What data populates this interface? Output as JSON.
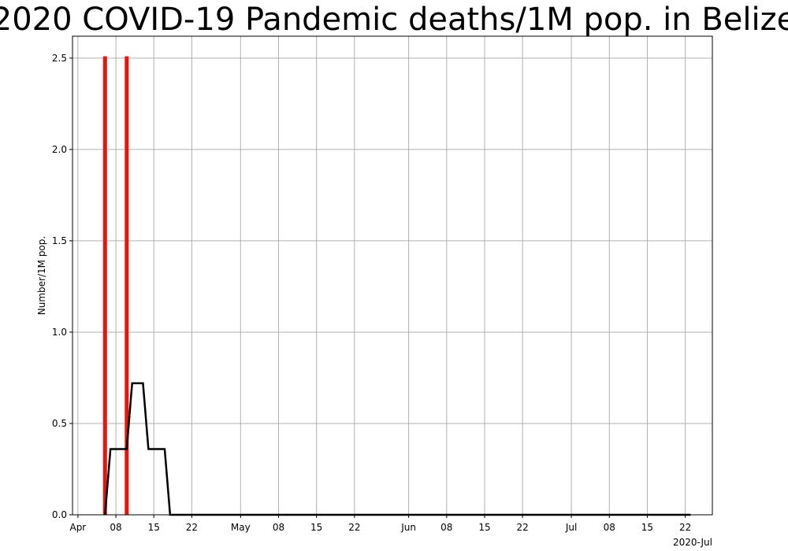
{
  "chart_data": {
    "type": "bar",
    "title": "2020 COVID-19 Pandemic deaths/1M pop. in Belize",
    "xlabel": "",
    "ylabel": "Number/1M pop.",
    "xlim": [
      "2020-03-31",
      "2020-07-27"
    ],
    "ylim": [
      0,
      2.62
    ],
    "grid": true,
    "y_ticks": [
      {
        "value": 0.0,
        "label": "0.0"
      },
      {
        "value": 0.5,
        "label": "0.5"
      },
      {
        "value": 1.0,
        "label": "1.0"
      },
      {
        "value": 1.5,
        "label": "1.5"
      },
      {
        "value": 2.0,
        "label": "2.0"
      },
      {
        "value": 2.5,
        "label": "2.5"
      }
    ],
    "x_ticks": [
      {
        "date": "2020-04-01",
        "label": "Apr"
      },
      {
        "date": "2020-04-08",
        "label": "08"
      },
      {
        "date": "2020-04-15",
        "label": "15"
      },
      {
        "date": "2020-04-22",
        "label": "22"
      },
      {
        "date": "2020-05-01",
        "label": "May"
      },
      {
        "date": "2020-05-08",
        "label": "08"
      },
      {
        "date": "2020-05-15",
        "label": "15"
      },
      {
        "date": "2020-05-22",
        "label": "22"
      },
      {
        "date": "2020-06-01",
        "label": "Jun"
      },
      {
        "date": "2020-06-08",
        "label": "08"
      },
      {
        "date": "2020-06-15",
        "label": "15"
      },
      {
        "date": "2020-06-22",
        "label": "22"
      },
      {
        "date": "2020-07-01",
        "label": "Jul"
      },
      {
        "date": "2020-07-08",
        "label": "08"
      },
      {
        "date": "2020-07-15",
        "label": "15"
      },
      {
        "date": "2020-07-22",
        "label": "22"
      }
    ],
    "x_offset_label": "2020-Jul",
    "series": [
      {
        "type": "bar",
        "color": "#e8150e",
        "points": [
          {
            "x": "2020-04-06",
            "y": 2.51
          },
          {
            "x": "2020-04-10",
            "y": 2.51
          }
        ]
      },
      {
        "type": "line",
        "color": "#000000",
        "points": [
          {
            "x": "2020-04-06",
            "y": 0.0
          },
          {
            "x": "2020-04-07",
            "y": 0.36
          },
          {
            "x": "2020-04-10",
            "y": 0.36
          },
          {
            "x": "2020-04-11",
            "y": 0.72
          },
          {
            "x": "2020-04-13",
            "y": 0.72
          },
          {
            "x": "2020-04-14",
            "y": 0.36
          },
          {
            "x": "2020-04-17",
            "y": 0.36
          },
          {
            "x": "2020-04-18",
            "y": 0.0
          },
          {
            "x": "2020-07-23",
            "y": 0.0
          }
        ]
      }
    ]
  }
}
